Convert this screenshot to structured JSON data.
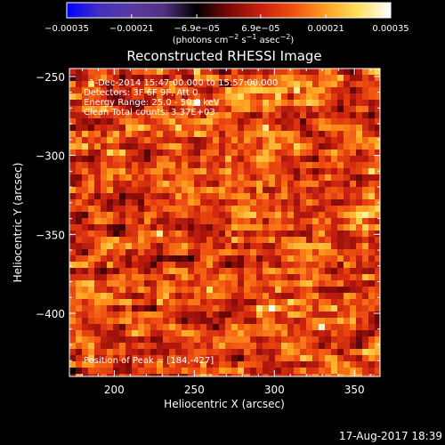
{
  "chart_data": {
    "type": "heatmap",
    "title": "Reconstructed RHESSI Image",
    "xlabel": "Heliocentric X (arcsec)",
    "ylabel": "Heliocentric Y (arcsec)",
    "xlim": [
      172,
      366
    ],
    "ylim": [
      -440,
      -245
    ],
    "x_ticks": [
      200,
      250,
      300,
      350
    ],
    "y_ticks": [
      -250,
      -300,
      -350,
      -400
    ],
    "x_tick_labels": [
      "200",
      "250",
      "300",
      "350"
    ],
    "y_tick_labels": [
      "−250",
      "−300",
      "−350",
      "−400"
    ],
    "colorbar": {
      "min": -0.00035,
      "max": 0.00035,
      "tick_values": [
        -0.00035,
        -0.00021,
        -6.9e-05,
        6.9e-05,
        0.00021,
        0.00035
      ],
      "tick_labels": [
        "−0.00035",
        "−0.00021",
        "−6.9e−05",
        "6.9e−05",
        "0.00021",
        "0.00035"
      ],
      "unit_prefix": "(photons cm",
      "unit_exp1": "−2",
      "unit_mid": " s",
      "unit_exp2": "−1",
      "unit_mid2": " asec",
      "unit_exp3": "−2",
      "unit_suffix": ")",
      "stops": [
        "#0000ff",
        "#4030c0",
        "#5a3aa0",
        "#503080",
        "#000000",
        "#7a0808",
        "#c82010",
        "#f05010",
        "#ffa020",
        "#ffe060",
        "#ffffff"
      ]
    },
    "info_lines": [
      "1-Dec-2014 15:47:00.000 to 15:57:00.000",
      "Detectors: 3F 6F 9F, Att 0",
      "Energy Range: 25.0 - 50.0 keV",
      "Clean    Total counts: 3.37E+03"
    ],
    "peak_label": "Position of Peak = [184,-427]",
    "peak": [
      184,
      -427
    ]
  },
  "footer": {
    "timestamp": "17-Aug-2017 18:39"
  }
}
